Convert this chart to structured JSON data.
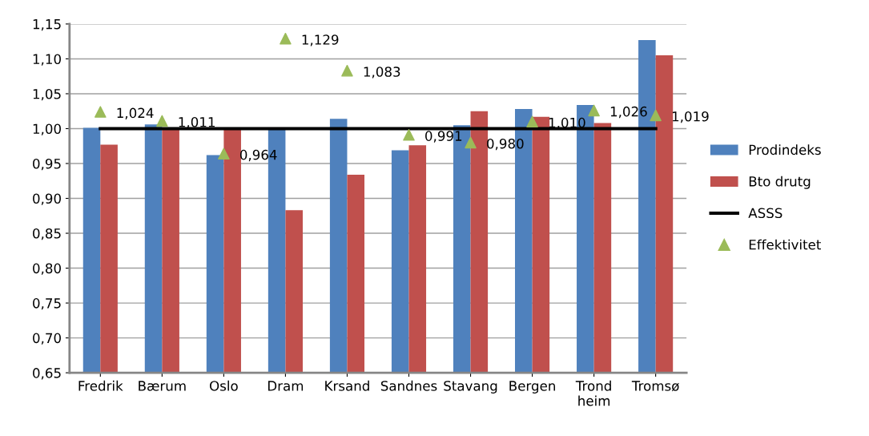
{
  "chart_data": {
    "type": "bar",
    "categories": [
      "Fredrik",
      "Bærum",
      "Oslo",
      "Dram",
      "Krsand",
      "Sandnes",
      "Stavang",
      "Bergen",
      "Trond\nheim",
      "Tromsø"
    ],
    "series": [
      {
        "name": "Prodindeks",
        "color": "#4f81bd",
        "values": [
          1.001,
          1.006,
          0.962,
          1.0,
          1.014,
          0.969,
          1.005,
          1.028,
          1.034,
          1.127
        ]
      },
      {
        "name": "Bto drutg",
        "color": "#c0504d",
        "values": [
          0.977,
          1.0,
          1.0,
          0.883,
          0.934,
          0.976,
          1.025,
          1.017,
          1.008,
          1.105
        ]
      },
      {
        "name": "ASSS",
        "type": "line",
        "color": "#000000",
        "values": [
          1.0,
          1.0,
          1.0,
          1.0,
          1.0,
          1.0,
          1.0,
          1.0,
          1.0,
          1.0
        ]
      },
      {
        "name": "Effektivitet",
        "type": "scatter",
        "color": "#9bbb59",
        "marker": "triangle",
        "values": [
          1.024,
          1.011,
          0.964,
          1.129,
          1.083,
          0.991,
          0.98,
          1.01,
          1.026,
          1.019
        ],
        "value_labels": [
          "1,024",
          "1,011",
          "0,964",
          "1,129",
          "1,083",
          "0,991",
          "0,980",
          "1,010",
          "1,026",
          "1,019"
        ]
      }
    ],
    "ylim": [
      0.65,
      1.15
    ],
    "yticks": [
      {
        "value": 0.65,
        "label": "0,65"
      },
      {
        "value": 0.7,
        "label": "0,70"
      },
      {
        "value": 0.75,
        "label": "0,75"
      },
      {
        "value": 0.8,
        "label": "0,80"
      },
      {
        "value": 0.85,
        "label": "0,85"
      },
      {
        "value": 0.9,
        "label": "0,90"
      },
      {
        "value": 0.95,
        "label": "0,95"
      },
      {
        "value": 1.0,
        "label": "1,00"
      },
      {
        "value": 1.05,
        "label": "1,05"
      },
      {
        "value": 1.1,
        "label": "1,10"
      },
      {
        "value": 1.15,
        "label": "1,15"
      }
    ],
    "grid": "y",
    "legend": "right"
  }
}
